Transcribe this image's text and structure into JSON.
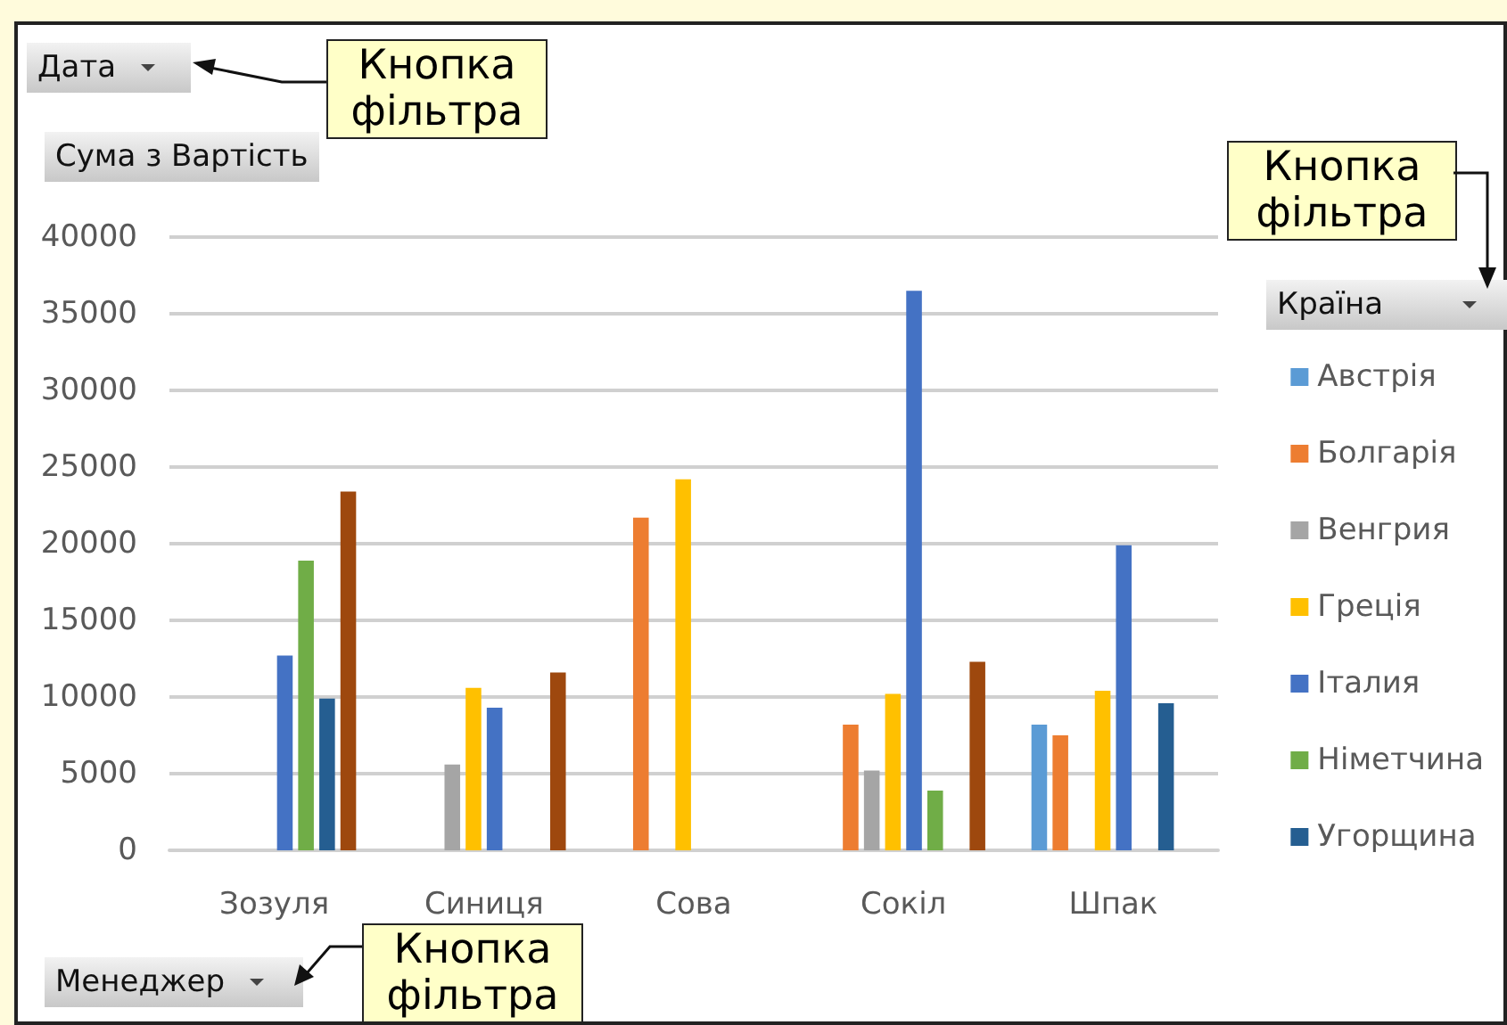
{
  "chart_data": {
    "type": "bar",
    "ylabel": "Сума з Вартість",
    "xlabel": "Менеджер",
    "legend_title": "Країна",
    "annotations": [
      "Дата",
      "Кнопка фільтра",
      "Кнопка фільтра",
      "Кнопка фільтра"
    ],
    "categories": [
      "Зозуля",
      "Синиця",
      "Сова",
      "Сокіл",
      "Шпак"
    ],
    "series": [
      {
        "name": "Австрія",
        "color": "#5b9bd5",
        "values": [
          null,
          null,
          null,
          null,
          8200
        ]
      },
      {
        "name": "Болгарія",
        "color": "#ed7d31",
        "values": [
          null,
          null,
          21700,
          8200,
          7500
        ]
      },
      {
        "name": "Венгрия",
        "color": "#a5a5a5",
        "values": [
          null,
          5600,
          null,
          5200,
          null
        ]
      },
      {
        "name": "Греція",
        "color": "#ffc000",
        "values": [
          null,
          10600,
          24200,
          10200,
          10400
        ]
      },
      {
        "name": "Італия",
        "color": "#4472c4",
        "values": [
          12700,
          9300,
          null,
          36500,
          19900
        ]
      },
      {
        "name": "Німетчина",
        "color": "#70ad47",
        "values": [
          18900,
          null,
          null,
          3900,
          null
        ]
      },
      {
        "name": "Угорщина",
        "color": "#255e91",
        "values": [
          9900,
          null,
          null,
          null,
          9600
        ]
      },
      {
        "color": "#9e480e",
        "values": [
          23400,
          11600,
          null,
          12300,
          null
        ]
      }
    ],
    "ylim": [
      0,
      40000
    ],
    "yticks": [
      0,
      5000,
      10000,
      15000,
      20000,
      25000,
      30000,
      35000,
      40000
    ],
    "grid": "y",
    "legend": "right"
  }
}
